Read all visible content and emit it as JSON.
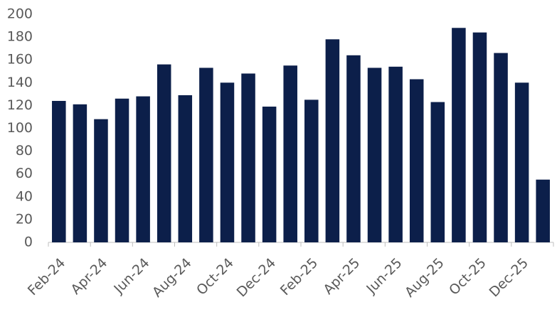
{
  "chart_data": {
    "type": "bar",
    "categories": [
      "Feb-24",
      null,
      "Apr-24",
      null,
      "Jun-24",
      null,
      "Aug-24",
      null,
      "Oct-24",
      null,
      "Dec-24",
      null,
      "Feb-25",
      null,
      "Apr-25",
      null,
      "Jun-25",
      null,
      "Aug-25",
      null,
      "Oct-25",
      null,
      "Dec-25",
      null
    ],
    "values": [
      124,
      121,
      108,
      126,
      128,
      156,
      129,
      153,
      140,
      148,
      119,
      155,
      125,
      178,
      164,
      153,
      154,
      143,
      123,
      188,
      184,
      166,
      140,
      55
    ],
    "color": "#0c1f4a",
    "ylim": [
      0,
      200
    ],
    "yticks": [
      0,
      20,
      40,
      60,
      80,
      100,
      120,
      140,
      160,
      180,
      200
    ],
    "grid": false
  }
}
